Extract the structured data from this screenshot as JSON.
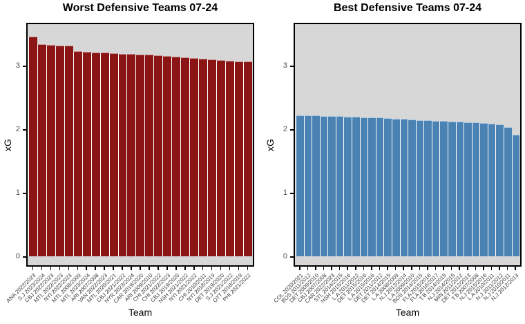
{
  "figure": {
    "background": "#FFFFFF",
    "panel_background": "#D7D7D7",
    "panel_border_color": "#000000",
    "axis_tick_color": "#000000",
    "y_tick_label_color": "#4D4D4D",
    "x_tick_label_color": "#383838"
  },
  "chart_data": [
    {
      "type": "bar",
      "title": "Worst Defensive Teams 07-24",
      "xlabel": "Team",
      "ylabel": "xG",
      "bar_color": "#8B1414",
      "legend": "none",
      "grid": false,
      "ylim": [
        0,
        3.67
      ],
      "yticks": [
        0,
        1,
        2,
        3
      ],
      "categories": [
        "ANA 2022/2023",
        "S.J 2023/2024",
        "CBJ 2022/2023",
        "MTL 2022/2023",
        "NYI 2022/2023",
        "MTL 2008/2009",
        "MTL 2023/2024",
        "ARI 2007/2008",
        "VAN 2022/2023",
        "MTL 2020/2021",
        "CBJ 2021/2022",
        "NYR 2023/2024",
        "CAR 2019/2020",
        "ARI 2009/2010",
        "CHI 2021/2022",
        "CHI 2022/2023",
        "CBJ 2019/2020",
        "NSH 2021/2022",
        "NYI 2021/2022",
        "CHI 2010/2011",
        "NYI 2018/2019",
        "DET 2019/2020",
        "S.J 2021/2022",
        "OTT 2018/2019",
        "PHI 2021/2022"
      ],
      "values": [
        3.46,
        3.34,
        3.33,
        3.32,
        3.31,
        3.23,
        3.22,
        3.21,
        3.21,
        3.2,
        3.19,
        3.18,
        3.17,
        3.17,
        3.16,
        3.15,
        3.14,
        3.13,
        3.12,
        3.11,
        3.1,
        3.09,
        3.08,
        3.07,
        3.06
      ]
    },
    {
      "type": "bar",
      "title": "Best Defensive Teams 07-24",
      "xlabel": "Team",
      "ylabel": "xG",
      "bar_color": "#4A82B4",
      "legend": "none",
      "grid": false,
      "ylim": [
        0,
        3.67
      ],
      "yticks": [
        0,
        1,
        2,
        3
      ],
      "categories": [
        "COL 2020/2021",
        "BOS 2011/2012",
        "DET 2009/2010",
        "CBJ 2007/2008",
        "CAR 2022/2023",
        "STL 2014/2015",
        "NSH 2015/2016",
        "L.A 2011/2012",
        "DET 2015/2016",
        "L.A 2015/2016",
        "DET 2011/2012",
        "DET 2014/2015",
        "L.A 2008/2009",
        "N.J 2013/2014",
        "L.A 2009/2010",
        "BOS 2014/2015",
        "FLA 2015/2016",
        "FLA 2016/2017",
        "T.B 2014/2015",
        "N.J 2014/2015",
        "MIN 2011/2012",
        "DET 2012/2013",
        "T.B 2007/2008",
        "N.J 2015/2016",
        "L.A 2010/2011",
        "N.J 2011/2012",
        "N.J 2010/2011",
        "N.J 2012/2013"
      ],
      "values": [
        2.22,
        2.22,
        2.22,
        2.21,
        2.21,
        2.21,
        2.2,
        2.2,
        2.19,
        2.19,
        2.18,
        2.17,
        2.16,
        2.16,
        2.15,
        2.14,
        2.14,
        2.13,
        2.13,
        2.12,
        2.12,
        2.11,
        2.11,
        2.1,
        2.09,
        2.08,
        2.03,
        1.91
      ]
    }
  ]
}
